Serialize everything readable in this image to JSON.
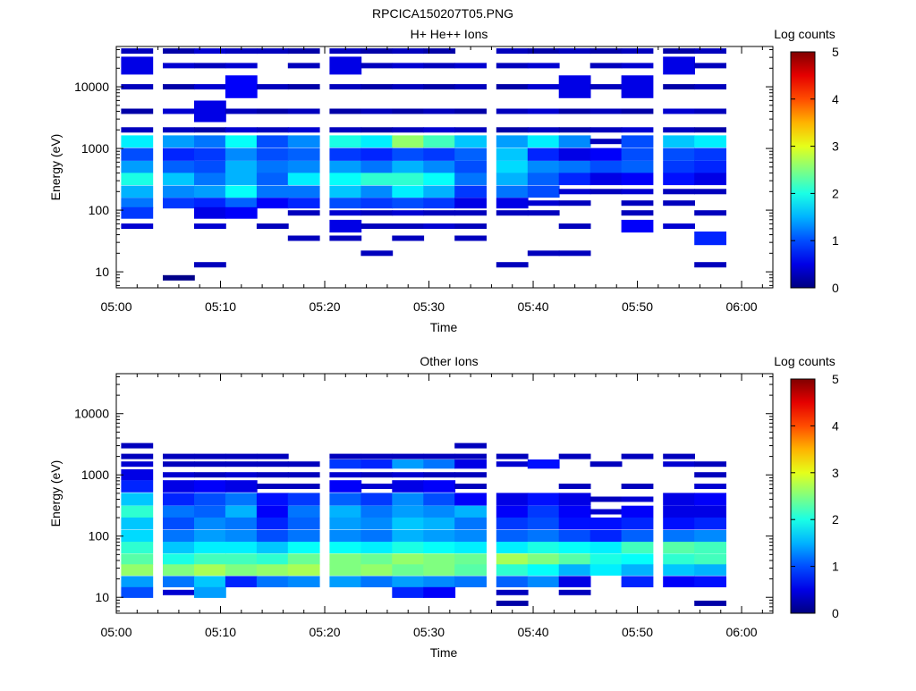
{
  "figure_title": "RPCICA150207T05.PNG",
  "chart_data": [
    {
      "type": "heatmap",
      "title": "H+ He++ Ions",
      "xlabel": "Time",
      "ylabel": "Energy (eV)",
      "x_ticks": [
        "05:00",
        "05:10",
        "05:20",
        "05:30",
        "05:40",
        "05:50",
        "06:00"
      ],
      "xlim": [
        "05:00",
        "06:03"
      ],
      "y_scale": "log",
      "ylim": [
        5.5,
        45000
      ],
      "y_ticks": [
        10,
        100,
        1000,
        10000
      ],
      "y_tick_labels": [
        "10",
        "100",
        "1000",
        "10000"
      ],
      "colorbar": {
        "label": "Log counts",
        "range": [
          0,
          5
        ],
        "ticks": [
          "0",
          "1",
          "2",
          "3",
          "4",
          "5"
        ],
        "colormap": "jet"
      },
      "time_columns": [
        "05:02",
        "05:06",
        "05:09",
        "05:12",
        "05:15",
        "05:18",
        "05:22",
        "05:25",
        "05:28",
        "05:31",
        "05:34",
        "05:38",
        "05:41",
        "05:44",
        "05:47",
        "05:50",
        "05:54",
        "05:57"
      ],
      "rows": [
        {
          "energy": 38000,
          "levels": [
            0.3,
            0.2,
            0.4,
            0.3,
            0.3,
            0.2,
            0.3,
            0.2,
            0.3,
            0.2,
            0,
            0.3,
            0.2,
            0.3,
            0.2,
            0.3,
            0.2,
            0.3
          ]
        },
        {
          "energy": 22000,
          "levels": [
            0.5,
            0.4,
            0.3,
            0.4,
            0,
            0.3,
            0.5,
            0.3,
            0.4,
            0.3,
            0.4,
            0.3,
            0.4,
            0,
            0.3,
            0.4,
            0.5,
            0.3
          ]
        },
        {
          "energy": 10000,
          "levels": [
            0.3,
            0.2,
            0.4,
            0.6,
            0.3,
            0.2,
            0.3,
            0.2,
            0.3,
            0.2,
            0.3,
            0.2,
            0.4,
            0.5,
            0.3,
            0.5,
            0.2,
            0.3
          ]
        },
        {
          "energy": 4000,
          "levels": [
            0.2,
            0.4,
            0.5,
            0.3,
            0.2,
            0.3,
            0.2,
            0.3,
            0.2,
            0.3,
            0.2,
            0.3,
            0.4,
            0.2,
            0.3,
            0.2,
            0.4,
            0.3
          ]
        },
        {
          "energy": 2000,
          "levels": [
            0.3,
            0.3,
            0.2,
            0.4,
            0.3,
            0.4,
            0.3,
            0.2,
            0.3,
            0.4,
            0.3,
            0.2,
            0.3,
            0.2,
            0.3,
            0.4,
            0.3,
            0.2
          ]
        },
        {
          "energy": 1300,
          "levels": [
            1.8,
            1.4,
            1.2,
            1.9,
            1.0,
            1.3,
            2.0,
            1.8,
            2.6,
            2.2,
            1.6,
            1.4,
            1.8,
            1.3,
            0.3,
            1.0,
            1.6,
            1.8
          ]
        },
        {
          "energy": 800,
          "levels": [
            1.0,
            0.8,
            0.9,
            1.3,
            1.0,
            1.1,
            0.9,
            0.8,
            1.0,
            0.9,
            1.1,
            1.6,
            0.8,
            0.5,
            0.6,
            1.0,
            1.0,
            0.9
          ]
        },
        {
          "energy": 500,
          "levels": [
            1.4,
            1.1,
            1.0,
            1.5,
            1.2,
            1.3,
            1.4,
            1.2,
            1.5,
            1.3,
            1.0,
            1.7,
            1.3,
            1.2,
            1.0,
            1.1,
            0.9,
            0.8
          ]
        },
        {
          "energy": 320,
          "levels": [
            2.0,
            1.6,
            1.2,
            1.5,
            1.1,
            1.8,
            1.9,
            2.1,
            2.1,
            1.9,
            1.2,
            1.5,
            1.1,
            0.8,
            0.5,
            0.6,
            0.7,
            0.5
          ]
        },
        {
          "energy": 200,
          "levels": [
            1.5,
            1.3,
            1.4,
            1.9,
            1.2,
            1.2,
            1.6,
            1.3,
            1.8,
            1.5,
            0.9,
            1.2,
            1.0,
            0.4,
            0.3,
            0.4,
            0.3,
            0.3
          ]
        },
        {
          "energy": 130,
          "levels": [
            1.2,
            0.9,
            0.8,
            1.1,
            0.6,
            0.8,
            1.0,
            0.9,
            1.0,
            0.9,
            0.5,
            0.5,
            0.4,
            0.3,
            0,
            0.3,
            0.3,
            0
          ]
        },
        {
          "energy": 90,
          "levels": [
            0.9,
            0,
            0.5,
            0.6,
            0,
            0.3,
            0.4,
            0.3,
            0.4,
            0.3,
            0.3,
            0.3,
            0.3,
            0,
            0,
            0.3,
            0,
            0.3
          ]
        },
        {
          "energy": 55,
          "levels": [
            0.4,
            0,
            0.4,
            0,
            0.3,
            0,
            0.5,
            0.3,
            0.3,
            0.4,
            0.3,
            0,
            0,
            0.3,
            0,
            0.6,
            0.4,
            0
          ]
        },
        {
          "energy": 35,
          "levels": [
            0,
            0,
            0,
            0,
            0,
            0.3,
            0.3,
            0,
            0.3,
            0,
            0.3,
            0,
            0,
            0,
            0,
            0,
            0,
            0.8
          ]
        },
        {
          "energy": 20,
          "levels": [
            0,
            0,
            0,
            0,
            0,
            0,
            0,
            0.3,
            0,
            0,
            0,
            0,
            0.3,
            0.3,
            0,
            0,
            0,
            0
          ]
        },
        {
          "energy": 13,
          "levels": [
            0,
            0,
            0.3,
            0,
            0,
            0,
            0,
            0,
            0,
            0,
            0,
            0.3,
            0,
            0,
            0,
            0,
            0,
            0.3
          ]
        },
        {
          "energy": 8,
          "levels": [
            0,
            0.05,
            0,
            0,
            0,
            0,
            0,
            0,
            0,
            0,
            0,
            0,
            0,
            0,
            0,
            0,
            0,
            0
          ]
        }
      ]
    },
    {
      "type": "heatmap",
      "title": "Other Ions",
      "xlabel": "Time",
      "ylabel": "Energy (eV)",
      "x_ticks": [
        "05:00",
        "05:10",
        "05:20",
        "05:30",
        "05:40",
        "05:50",
        "06:00"
      ],
      "xlim": [
        "05:00",
        "06:03"
      ],
      "y_scale": "log",
      "ylim": [
        5.5,
        45000
      ],
      "y_ticks": [
        10,
        100,
        1000,
        10000
      ],
      "y_tick_labels": [
        "10",
        "100",
        "1000",
        "10000"
      ],
      "colorbar": {
        "label": "Log counts",
        "range": [
          0,
          5
        ],
        "ticks": [
          "0",
          "1",
          "2",
          "3",
          "4",
          "5"
        ],
        "colormap": "jet"
      },
      "time_columns": [
        "05:02",
        "05:06",
        "05:09",
        "05:12",
        "05:15",
        "05:18",
        "05:22",
        "05:25",
        "05:28",
        "05:31",
        "05:34",
        "05:38",
        "05:41",
        "05:44",
        "05:47",
        "05:50",
        "05:54",
        "05:57"
      ],
      "rows": [
        {
          "energy": 3000,
          "levels": [
            0.3,
            0,
            0,
            0,
            0,
            0,
            0,
            0,
            0,
            0,
            0.3,
            0,
            0,
            0,
            0,
            0,
            0,
            0
          ]
        },
        {
          "energy": 2000,
          "levels": [
            0.3,
            0.3,
            0.3,
            0.3,
            0.3,
            0,
            0.3,
            0.3,
            0.3,
            0.3,
            0.3,
            0.3,
            0,
            0.3,
            0,
            0.3,
            0.3,
            0
          ]
        },
        {
          "energy": 1500,
          "levels": [
            0.4,
            0.3,
            0.3,
            0.3,
            0.3,
            0.3,
            0.9,
            0.8,
            1.4,
            1.2,
            0.5,
            0.4,
            0.7,
            0,
            0.3,
            0,
            0.4,
            0.3
          ]
        },
        {
          "energy": 1000,
          "levels": [
            0.5,
            0.4,
            0.3,
            0.4,
            0.3,
            0.3,
            0.4,
            0.3,
            0.4,
            0.3,
            0.3,
            0,
            0,
            0,
            0,
            0,
            0,
            0.3
          ]
        },
        {
          "energy": 650,
          "levels": [
            0.8,
            0.5,
            0.6,
            0.5,
            0.3,
            0.3,
            0.6,
            0.4,
            0.5,
            0.6,
            0.3,
            0,
            0,
            0.3,
            0,
            0.3,
            0,
            0.4
          ]
        },
        {
          "energy": 400,
          "levels": [
            1.6,
            0.8,
            1.0,
            1.2,
            0.7,
            0.9,
            1.1,
            0.9,
            1.3,
            1.0,
            0.6,
            0.5,
            0.7,
            0.5,
            0.3,
            0.4,
            0.5,
            0.6
          ]
        },
        {
          "energy": 250,
          "levels": [
            2.1,
            1.2,
            1.1,
            1.5,
            0.6,
            1.2,
            1.5,
            1.2,
            1.4,
            1.3,
            1.5,
            0.6,
            0.9,
            0.6,
            0.4,
            0.6,
            0.5,
            0.5
          ]
        },
        {
          "energy": 160,
          "levels": [
            1.6,
            1.0,
            1.3,
            1.2,
            0.8,
            1.1,
            1.4,
            1.3,
            1.6,
            1.5,
            1.2,
            0.9,
            1.0,
            0.7,
            0.7,
            0.8,
            0.7,
            0.8
          ]
        },
        {
          "energy": 100,
          "levels": [
            1.7,
            1.2,
            1.4,
            1.3,
            1.0,
            1.2,
            1.3,
            1.2,
            1.5,
            1.4,
            1.3,
            1.1,
            1.2,
            1.0,
            0.8,
            1.1,
            1.2,
            1.3
          ]
        },
        {
          "energy": 65,
          "levels": [
            2.1,
            1.6,
            1.8,
            1.8,
            1.6,
            1.9,
            1.9,
            1.8,
            2.0,
            1.9,
            1.8,
            1.8,
            2.0,
            1.9,
            1.8,
            2.2,
            2.3,
            2.2
          ]
        },
        {
          "energy": 42,
          "levels": [
            2.3,
            2.0,
            2.2,
            2.2,
            2.1,
            2.4,
            2.5,
            2.4,
            2.6,
            2.5,
            2.4,
            2.7,
            2.5,
            2.3,
            2.0,
            1.9,
            2.1,
            2.2
          ]
        },
        {
          "energy": 28,
          "levels": [
            2.6,
            2.5,
            2.7,
            2.5,
            2.6,
            2.7,
            2.5,
            2.6,
            2.4,
            2.5,
            2.3,
            2.1,
            1.9,
            1.5,
            1.8,
            1.5,
            1.6,
            1.5
          ]
        },
        {
          "energy": 18,
          "levels": [
            1.4,
            1.2,
            1.6,
            0.8,
            1.2,
            1.3,
            1.4,
            1.2,
            1.4,
            1.3,
            1.2,
            1.1,
            1.3,
            0.5,
            0,
            0.8,
            0.6,
            0.7
          ]
        },
        {
          "energy": 12,
          "levels": [
            1.0,
            0.4,
            1.4,
            0,
            0,
            0,
            0,
            0,
            0.8,
            0.6,
            0,
            0.3,
            0,
            0.3,
            0,
            0,
            0,
            0
          ]
        },
        {
          "energy": 8,
          "levels": [
            0,
            0,
            0,
            0,
            0,
            0,
            0,
            0,
            0,
            0,
            0,
            0.2,
            0,
            0,
            0,
            0,
            0,
            0.2
          ]
        }
      ]
    }
  ]
}
